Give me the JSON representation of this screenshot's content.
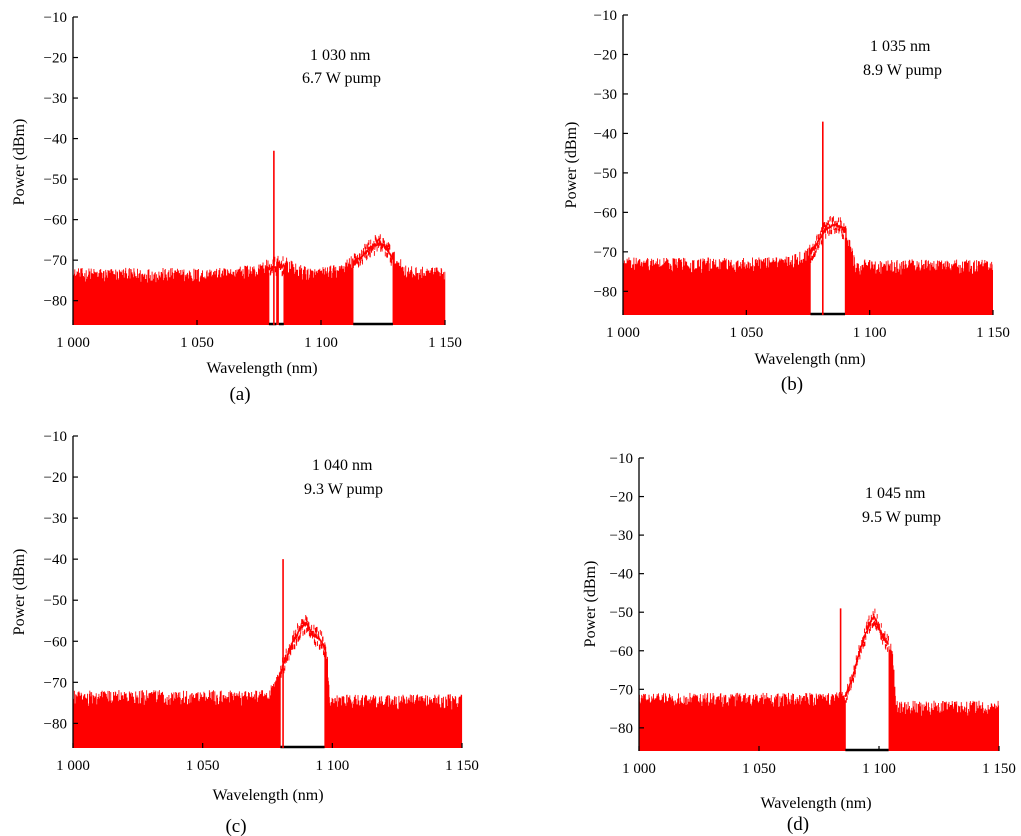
{
  "figure": {
    "panels": [
      {
        "caption": "(a)",
        "annotation_line1": "1 030 nm",
        "annotation_line2": "6.7 W pump"
      },
      {
        "caption": "(b)",
        "annotation_line1": "1 035 nm",
        "annotation_line2": "8.9 W pump"
      },
      {
        "caption": "(c)",
        "annotation_line1": "1 040 nm",
        "annotation_line2": "9.3 W pump"
      },
      {
        "caption": "(d)",
        "annotation_line1": "1 045 nm",
        "annotation_line2": "9.5 W pump"
      }
    ]
  },
  "chart_data": [
    {
      "type": "line",
      "panel": "(a)",
      "xlabel": "Wavelength (nm)",
      "ylabel": "Power (dBm)",
      "xlim": [
        1000,
        1150
      ],
      "ylim": [
        -86,
        -10
      ],
      "xticks": [
        1000,
        1050,
        1100,
        1150
      ],
      "xtick_labels": [
        "1 000",
        "1 050",
        "1 100",
        "1 150"
      ],
      "yticks": [
        -10,
        -20,
        -30,
        -40,
        -50,
        -60,
        -70,
        -80
      ],
      "ytick_labels": [
        "−10",
        "−20",
        "−30",
        "−40",
        "−50",
        "−60",
        "−70",
        "−80"
      ],
      "color": "#ff0000",
      "annotation": [
        "1 030 nm",
        "6.7 W pump"
      ],
      "spectrum": {
        "noise_floor_dBm": -74,
        "noise_amplitude_dB": 2.5,
        "laser_line": {
          "wavelength_nm": 1081,
          "peak_dBm": -43
        },
        "envelope": [
          [
            1000,
            -74.5
          ],
          [
            1060,
            -74.5
          ],
          [
            1075,
            -73.5
          ],
          [
            1081,
            -71.5
          ],
          [
            1085,
            -71.5
          ],
          [
            1090,
            -73.5
          ],
          [
            1098,
            -74.5
          ],
          [
            1108,
            -73.5
          ],
          [
            1113,
            -71
          ],
          [
            1118,
            -68
          ],
          [
            1121,
            -66.5
          ],
          [
            1124,
            -66
          ],
          [
            1127,
            -67.5
          ],
          [
            1130,
            -71
          ],
          [
            1135,
            -74
          ],
          [
            1150,
            -74.5
          ]
        ],
        "gaps": [
          [
            1079,
            1082
          ],
          [
            1083,
            1085
          ],
          [
            1113,
            1129
          ]
        ]
      }
    },
    {
      "type": "line",
      "panel": "(b)",
      "xlabel": "Wavelength (nm)",
      "ylabel": "Power (dBm)",
      "xlim": [
        1000,
        1150
      ],
      "ylim": [
        -86,
        -10
      ],
      "xticks": [
        1000,
        1050,
        1100,
        1150
      ],
      "xtick_labels": [
        "1 000",
        "1 050",
        "1 100",
        "1 150"
      ],
      "yticks": [
        -10,
        -20,
        -30,
        -40,
        -50,
        -60,
        -70,
        -80
      ],
      "ytick_labels": [
        "−10",
        "−20",
        "−30",
        "−40",
        "−50",
        "−60",
        "−70",
        "−80"
      ],
      "color": "#ff0000",
      "annotation": [
        "1 035 nm",
        "8.9 W pump"
      ],
      "spectrum": {
        "noise_floor_dBm": -74,
        "noise_amplitude_dB": 2.5,
        "laser_line": {
          "wavelength_nm": 1081,
          "peak_dBm": -37
        },
        "envelope": [
          [
            1000,
            -74
          ],
          [
            1065,
            -74
          ],
          [
            1072,
            -72.5
          ],
          [
            1076,
            -70.5
          ],
          [
            1079,
            -67.5
          ],
          [
            1082,
            -64.5
          ],
          [
            1085,
            -63
          ],
          [
            1088,
            -63.5
          ],
          [
            1090,
            -65
          ],
          [
            1092,
            -69
          ],
          [
            1094,
            -74.5
          ],
          [
            1150,
            -74.5
          ]
        ],
        "gaps": [
          [
            1076,
            1090
          ]
        ]
      }
    },
    {
      "type": "line",
      "panel": "(c)",
      "xlabel": "Wavelength (nm)",
      "ylabel": "Power (dBm)",
      "xlim": [
        1000,
        1150
      ],
      "ylim": [
        -86,
        -10
      ],
      "xticks": [
        1000,
        1050,
        1100,
        1150
      ],
      "xtick_labels": [
        "1 000",
        "1 050",
        "1 100",
        "1 150"
      ],
      "yticks": [
        -10,
        -20,
        -30,
        -40,
        -50,
        -60,
        -70,
        -80
      ],
      "ytick_labels": [
        "−10",
        "−20",
        "−30",
        "−40",
        "−50",
        "−60",
        "−70",
        "−80"
      ],
      "color": "#ff0000",
      "annotation": [
        "1 040 nm",
        "9.3 W pump"
      ],
      "spectrum": {
        "noise_floor_dBm": -75,
        "noise_amplitude_dB": 2.5,
        "laser_line": {
          "wavelength_nm": 1081,
          "peak_dBm": -40
        },
        "envelope": [
          [
            1000,
            -74.5
          ],
          [
            1074,
            -74.5
          ],
          [
            1078,
            -72
          ],
          [
            1081,
            -66
          ],
          [
            1085,
            -60
          ],
          [
            1088,
            -56.5
          ],
          [
            1090,
            -55.5
          ],
          [
            1092,
            -58
          ],
          [
            1094,
            -59
          ],
          [
            1096,
            -60
          ],
          [
            1098,
            -64
          ],
          [
            1099,
            -75.5
          ],
          [
            1150,
            -75.5
          ]
        ],
        "gaps": [
          [
            1080,
            1097
          ]
        ]
      }
    },
    {
      "type": "line",
      "panel": "(d)",
      "xlabel": "Wavelength (nm)",
      "ylabel": "Power (dBm)",
      "xlim": [
        1000,
        1150
      ],
      "ylim": [
        -86,
        -10
      ],
      "xticks": [
        1000,
        1050,
        1100,
        1150
      ],
      "xtick_labels": [
        "1 000",
        "1 050",
        "1 100",
        "1 150"
      ],
      "yticks": [
        -10,
        -20,
        -30,
        -40,
        -50,
        -60,
        -70,
        -80
      ],
      "ytick_labels": [
        "−10",
        "−20",
        "−30",
        "−40",
        "−50",
        "−60",
        "−70",
        "−80"
      ],
      "color": "#ff0000",
      "annotation": [
        "1 045 nm",
        "9.5 W pump"
      ],
      "spectrum": {
        "noise_floor_dBm": -74,
        "noise_amplitude_dB": 2.5,
        "laser_line": {
          "wavelength_nm": 1084,
          "peak_dBm": -49
        },
        "envelope": [
          [
            1000,
            -73.5
          ],
          [
            1080,
            -73.5
          ],
          [
            1086,
            -72
          ],
          [
            1089,
            -67
          ],
          [
            1092,
            -60
          ],
          [
            1096,
            -53
          ],
          [
            1098,
            -51
          ],
          [
            1100,
            -54
          ],
          [
            1102,
            -57
          ],
          [
            1104,
            -58
          ],
          [
            1106,
            -64
          ],
          [
            1107,
            -75.5
          ],
          [
            1150,
            -75.5
          ]
        ],
        "gaps": [
          [
            1086,
            1104
          ]
        ]
      }
    }
  ]
}
